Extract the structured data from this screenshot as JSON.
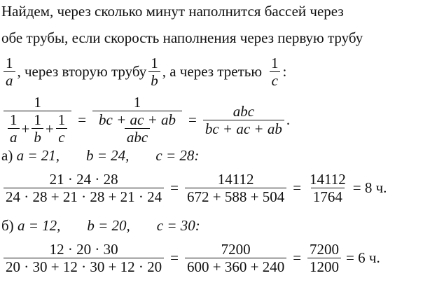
{
  "text": {
    "line1": "Найдем, через сколько минут наполнится бассей через",
    "line2": "обе трубы, если скорость наполнения через первую трубу",
    "line3_part1": ", через вторую трубу",
    "line3_part2": ", а через третью",
    "line3_end": ":"
  },
  "general_formula": {
    "one": "1",
    "a": "a",
    "b": "b",
    "c": "c",
    "plus": "+",
    "eq": "=",
    "sum": "bc + ac + ab",
    "abc": "abc",
    "end": "."
  },
  "case_a": {
    "label": "а)",
    "a": "a = 21,",
    "b": "b = 24,",
    "c": "c = 28:",
    "num": "21 · 24 · 28",
    "den": "24 · 28 + 21 · 28 + 21 · 24",
    "num2": "14112",
    "den2": "672 + 588 + 504",
    "num3": "14112",
    "den3": "1764",
    "result": "= 8 ч."
  },
  "case_b": {
    "label": "б)",
    "a": "a = 12,",
    "b": "b = 20,",
    "c": "c = 30:",
    "num": "12 · 20 · 30",
    "den": "20 · 30 + 12 · 30 + 12 · 20",
    "num2": "7200",
    "den2": "600 + 360 + 240",
    "num3": "7200",
    "den3": "1200",
    "result": "= 6 ч."
  }
}
